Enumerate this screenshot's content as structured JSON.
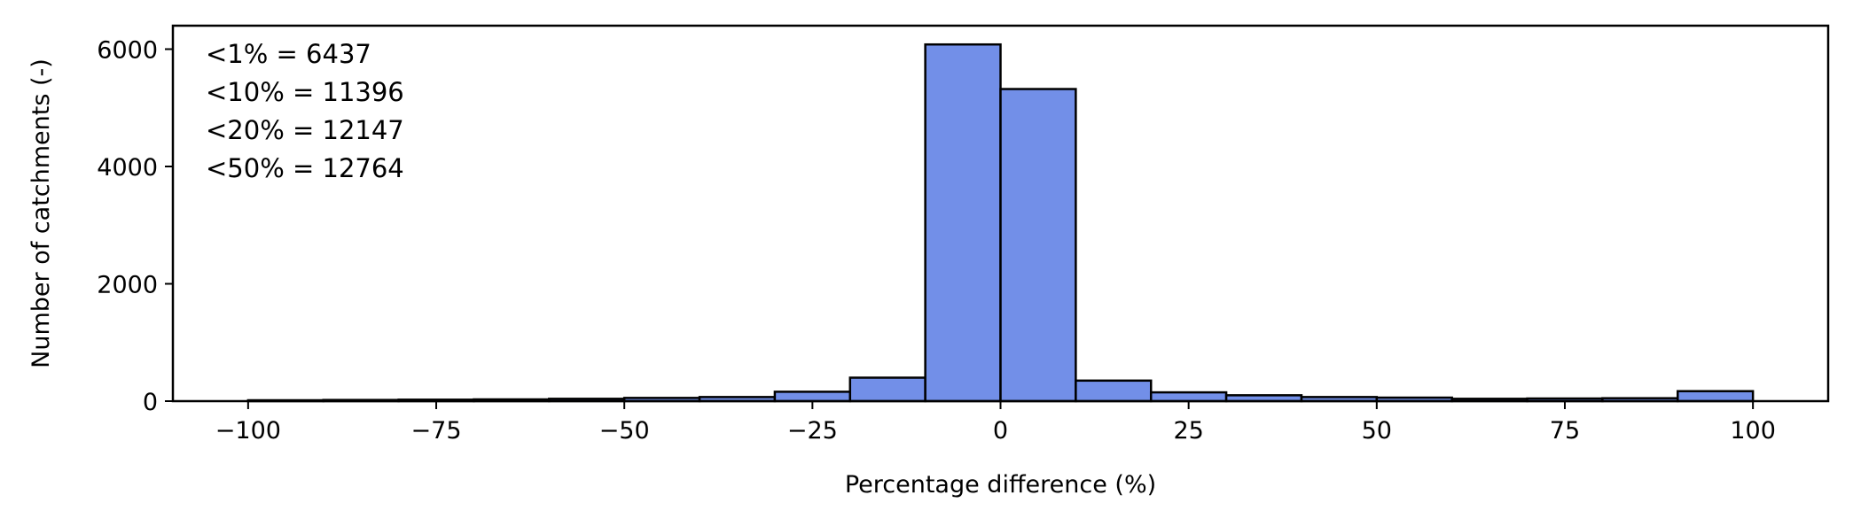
{
  "chart_data": {
    "type": "bar",
    "subtype": "histogram",
    "xlabel": "Percentage difference (%)",
    "ylabel": "Number of catchments (-)",
    "xlim": [
      -110,
      110
    ],
    "ylim": [
      0,
      6400
    ],
    "xticks": [
      -100,
      -75,
      -50,
      -25,
      0,
      25,
      50,
      75,
      100
    ],
    "xtick_labels": [
      "−100",
      "−75",
      "−50",
      "−25",
      "0",
      "25",
      "50",
      "75",
      "100"
    ],
    "yticks": [
      0,
      2000,
      4000,
      6000
    ],
    "ytick_labels": [
      "0",
      "2000",
      "4000",
      "6000"
    ],
    "bin_edges": [
      -100,
      -90,
      -80,
      -70,
      -60,
      -50,
      -40,
      -30,
      -20,
      -10,
      0,
      10,
      20,
      30,
      40,
      50,
      60,
      70,
      80,
      90,
      100
    ],
    "values": [
      15,
      20,
      25,
      30,
      40,
      55,
      70,
      160,
      400,
      6080,
      5320,
      350,
      150,
      100,
      70,
      60,
      40,
      45,
      50,
      170
    ],
    "bar_color": "#728fe8",
    "edge_color": "#000000",
    "grid": false,
    "annotations": [
      "<1% = 6437",
      "<10% = 11396",
      "<20% = 12147",
      "<50% = 12764"
    ],
    "annotation_position": "top-left"
  }
}
